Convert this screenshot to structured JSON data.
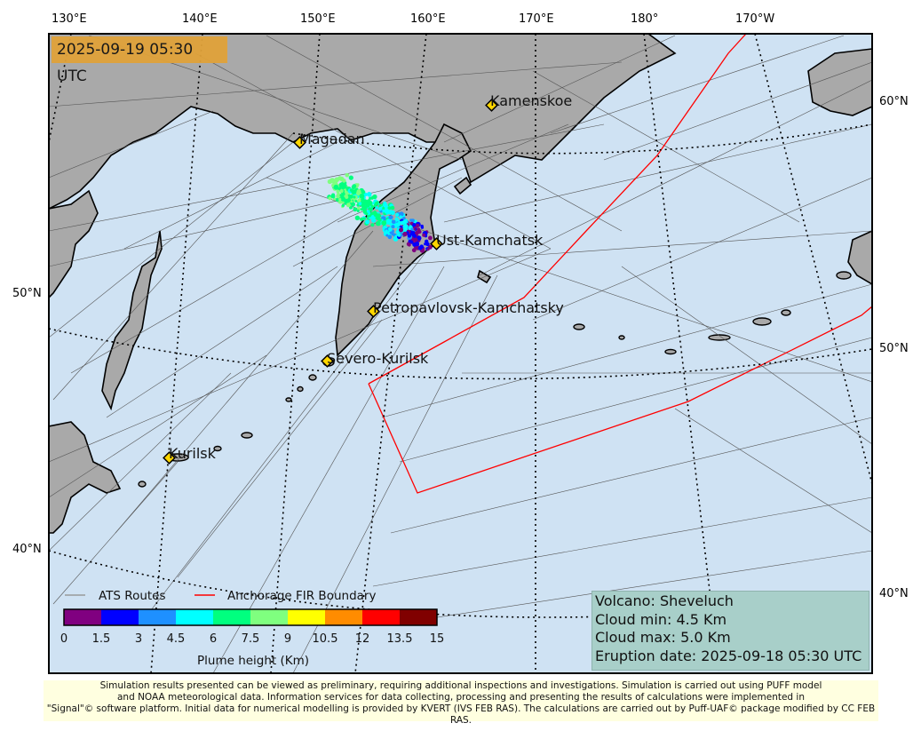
{
  "timestamp": "2025-09-19 05:30 UTC",
  "grid_labels": {
    "top": [
      "130°E",
      "140°E",
      "150°E",
      "160°E",
      "170°E",
      "180°",
      "170°W"
    ],
    "left": [
      "50°N",
      "40°N"
    ],
    "right": [
      "60°N",
      "50°N",
      "40°N"
    ]
  },
  "cities": [
    "Kamenskoe",
    "Magadan",
    "Ust-Kamchatsk",
    "Petropavlovsk-Kamchatsky",
    "Severo-Kurilsk",
    "Kurilsk"
  ],
  "legend": {
    "ats_routes": "ATS Routes",
    "fir_boundary": "Anchorage FIR Boundary",
    "colorbar_ticks": [
      "0",
      "1.5",
      "3",
      "4.5",
      "6",
      "7.5",
      "9",
      "10.5",
      "12",
      "13.5",
      "15"
    ],
    "colorbar_colors": [
      "#800080",
      "#0000ff",
      "#1e90ff",
      "#00ffff",
      "#00ff7f",
      "#7fff7f",
      "#ffff00",
      "#ff8c00",
      "#ff0000",
      "#800000"
    ],
    "colorbar_label": "Plume height (Km)"
  },
  "info": {
    "volcano": "Volcano: Sheveluch",
    "cloud_min": "Cloud min: 4.5 Km",
    "cloud_max": "Cloud max: 5.0 Km",
    "eruption_date": "Eruption date: 2025-09-18 05:30 UTC"
  },
  "footer": {
    "line1": "Simulation results presented can be viewed as preliminary, requiring additional inspections and investigations. Simulation is carried out using PUFF model",
    "line2": "and NOAA meteorological data. Information services for data collecting, processing and presenting the results of calculations were implemented in",
    "line3": "\"Signal\"© software platform. Initial data for numerical modelling is provided by KVERT (IVS FEB RAS). The calculations are carried out by Puff-UAF© package modified by CC FEB RAS."
  },
  "colors": {
    "ocean": "#cfe2f3",
    "land": "#a9a9a9",
    "fir": "#ff0000",
    "routes": "#555555"
  }
}
